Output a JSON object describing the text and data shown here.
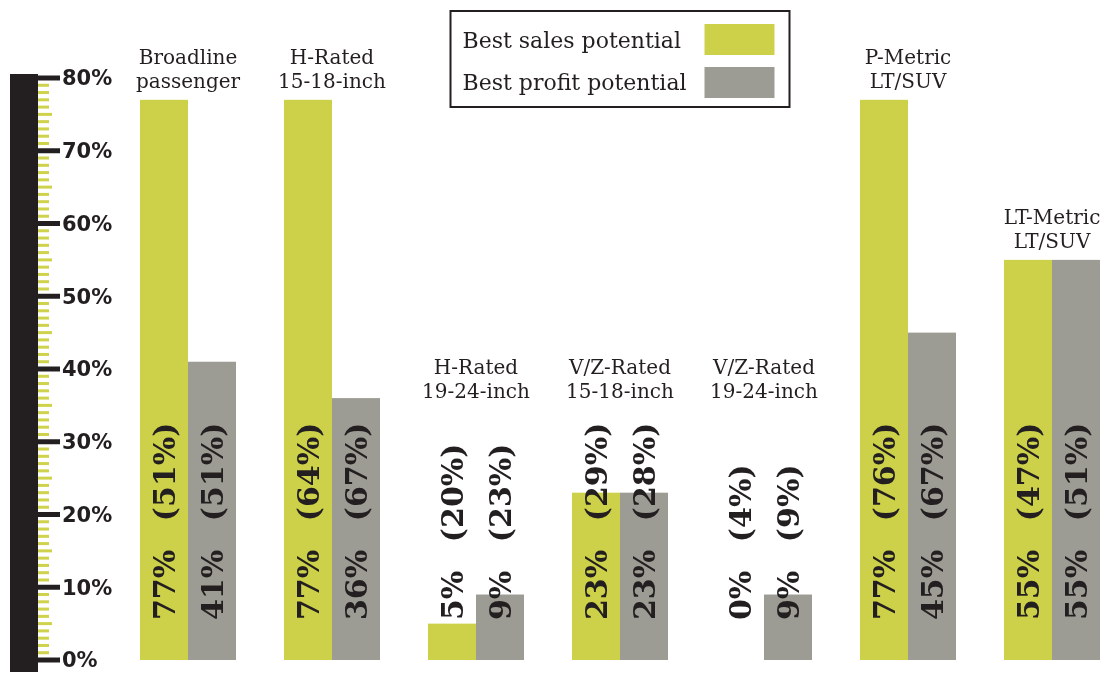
{
  "chart_data": {
    "type": "bar",
    "categories": [
      "Broadline passenger",
      "H-Rated 15-18-inch",
      "H-Rated 19-24-inch",
      "V/Z-Rated 15-18-inch",
      "V/Z-Rated 19-24-inch",
      "P-Metric LT/SUV",
      "LT-Metric LT/SUV"
    ],
    "series": [
      {
        "name": "Best sales potential",
        "color": "#cdd14a",
        "values": [
          77,
          77,
          5,
          23,
          0,
          77,
          55
        ],
        "value_labels": [
          "77% (51%)",
          "77% (64%)",
          "5% (20%)",
          "23% (29%)",
          "0% (4%)",
          "77% (76%)",
          "55% (47%)"
        ]
      },
      {
        "name": "Best profit potential",
        "color": "#9d9c94",
        "values": [
          41,
          36,
          9,
          23,
          9,
          45,
          55
        ],
        "value_labels": [
          "41% (51%)",
          "36% (67%)",
          "9% (23%)",
          "23% (28%)",
          "9% (9%)",
          "45% (67%)",
          "55% (51%)"
        ]
      }
    ],
    "ylim": [
      0,
      80
    ],
    "yticks": [
      {
        "value": 0,
        "label": "0%"
      },
      {
        "value": 10,
        "label": "10%"
      },
      {
        "value": 20,
        "label": "20%"
      },
      {
        "value": 30,
        "label": "30%"
      },
      {
        "value": 40,
        "label": "40%"
      },
      {
        "value": 50,
        "label": "50%"
      },
      {
        "value": 60,
        "label": "60%"
      },
      {
        "value": 70,
        "label": "70%"
      },
      {
        "value": 80,
        "label": "80%"
      }
    ],
    "grid": false,
    "legend": "top"
  }
}
